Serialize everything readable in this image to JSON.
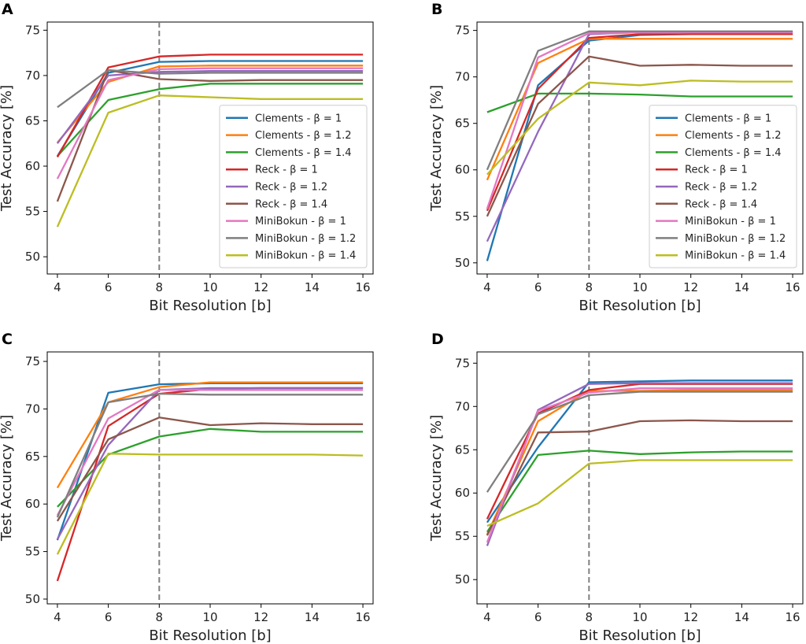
{
  "palette": {
    "blue": "#1f77b4",
    "orange": "#ff7f0e",
    "green": "#2ca02c",
    "red": "#d62728",
    "purple": "#9467bd",
    "brown": "#8c564b",
    "pink": "#e377c2",
    "gray": "#7f7f7f",
    "olive": "#bcbd22"
  },
  "chart_data": [
    {
      "panel": "A",
      "type": "line",
      "title": "",
      "xlabel": "Bit Resolution [b]",
      "ylabel": "Test Accuracy [%]",
      "x": [
        4,
        6,
        8,
        10,
        12,
        14,
        16
      ],
      "xticks": [
        "4",
        "6",
        "8",
        "10",
        "12",
        "14",
        "16"
      ],
      "yticks": [
        "50",
        "55",
        "60",
        "65",
        "70",
        "75"
      ],
      "xlim": [
        3.6,
        16.4
      ],
      "ylim": [
        48.1,
        75.9
      ],
      "vline_x": 8,
      "legend": "lower-right",
      "series": [
        {
          "name": "Clements - β = 1",
          "color": "blue",
          "values": [
            61.1,
            70.3,
            71.5,
            71.6,
            71.6,
            71.6,
            71.6
          ]
        },
        {
          "name": "Clements - β = 1.2",
          "color": "orange",
          "values": [
            62.6,
            69.3,
            71.0,
            71.1,
            71.1,
            71.1,
            71.1
          ]
        },
        {
          "name": "Clements - β = 1.4",
          "color": "green",
          "values": [
            61.1,
            67.3,
            68.5,
            69.1,
            69.1,
            69.1,
            69.1
          ]
        },
        {
          "name": "Reck - β = 1",
          "color": "red",
          "values": [
            61.0,
            70.9,
            72.1,
            72.3,
            72.3,
            72.3,
            72.3
          ]
        },
        {
          "name": "Reck - β = 1.2",
          "color": "purple",
          "values": [
            62.5,
            70.0,
            70.4,
            70.5,
            70.5,
            70.5,
            70.5
          ]
        },
        {
          "name": "Reck - β = 1.4",
          "color": "brown",
          "values": [
            56.1,
            70.6,
            69.6,
            69.4,
            69.5,
            69.5,
            69.5
          ]
        },
        {
          "name": "MiniBokun - β = 1",
          "color": "pink",
          "values": [
            58.6,
            69.5,
            70.7,
            70.8,
            70.8,
            70.8,
            70.8
          ]
        },
        {
          "name": "MiniBokun - β = 1.2",
          "color": "gray",
          "values": [
            66.5,
            70.6,
            70.2,
            70.3,
            70.3,
            70.3,
            70.3
          ]
        },
        {
          "name": "MiniBokun - β = 1.4",
          "color": "olive",
          "values": [
            53.3,
            65.9,
            67.8,
            67.6,
            67.4,
            67.4,
            67.4
          ]
        }
      ]
    },
    {
      "panel": "B",
      "type": "line",
      "title": "",
      "xlabel": "Bit Resolution [b]",
      "ylabel": "Test Accuracy [%]",
      "x": [
        4,
        6,
        8,
        10,
        12,
        14,
        16
      ],
      "xticks": [
        "4",
        "6",
        "8",
        "10",
        "12",
        "14",
        "16"
      ],
      "yticks": [
        "50",
        "55",
        "60",
        "65",
        "70",
        "75"
      ],
      "xlim": [
        3.6,
        16.4
      ],
      "ylim": [
        48.8,
        75.9
      ],
      "vline_x": 8,
      "legend": "lower-right",
      "series": [
        {
          "name": "Clements - β = 1",
          "color": "blue",
          "values": [
            50.2,
            69.1,
            73.9,
            74.5,
            74.6,
            74.6,
            74.6
          ]
        },
        {
          "name": "Clements - β = 1.2",
          "color": "orange",
          "values": [
            58.9,
            71.5,
            74.1,
            74.1,
            74.1,
            74.1,
            74.1
          ]
        },
        {
          "name": "Clements - β = 1.4",
          "color": "green",
          "values": [
            66.2,
            68.2,
            68.2,
            68.1,
            67.9,
            67.9,
            67.9
          ]
        },
        {
          "name": "Reck - β = 1",
          "color": "red",
          "values": [
            55.6,
            68.7,
            74.2,
            74.6,
            74.6,
            74.6,
            74.6
          ]
        },
        {
          "name": "Reck - β = 1.2",
          "color": "purple",
          "values": [
            52.3,
            64.1,
            74.6,
            74.8,
            74.8,
            74.8,
            74.8
          ]
        },
        {
          "name": "Reck - β = 1.4",
          "color": "brown",
          "values": [
            55.0,
            67.1,
            72.2,
            71.2,
            71.3,
            71.2,
            71.2
          ]
        },
        {
          "name": "MiniBokun - β = 1",
          "color": "pink",
          "values": [
            55.8,
            72.1,
            74.7,
            74.8,
            74.8,
            74.8,
            74.8
          ]
        },
        {
          "name": "MiniBokun - β = 1.2",
          "color": "gray",
          "values": [
            60.0,
            72.8,
            74.9,
            74.9,
            74.9,
            74.9,
            74.9
          ]
        },
        {
          "name": "MiniBokun - β = 1.4",
          "color": "olive",
          "values": [
            59.5,
            65.5,
            69.4,
            69.1,
            69.6,
            69.5,
            69.5
          ]
        }
      ]
    },
    {
      "panel": "C",
      "type": "line",
      "title": "",
      "xlabel": "Bit Resolution [b]",
      "ylabel": "Test Accuracy [%]",
      "x": [
        4,
        6,
        8,
        10,
        12,
        14,
        16
      ],
      "xticks": [
        "4",
        "6",
        "8",
        "10",
        "12",
        "14",
        "16"
      ],
      "yticks": [
        "50",
        "55",
        "60",
        "65",
        "70",
        "75"
      ],
      "xlim": [
        3.6,
        16.4
      ],
      "ylim": [
        49.5,
        76.0
      ],
      "vline_x": 8,
      "legend": "none",
      "series": [
        {
          "name": "Clements - β = 1",
          "color": "blue",
          "values": [
            56.2,
            71.7,
            72.6,
            72.7,
            72.7,
            72.7,
            72.7
          ]
        },
        {
          "name": "Clements - β = 1.2",
          "color": "orange",
          "values": [
            61.7,
            70.7,
            72.3,
            72.8,
            72.8,
            72.8,
            72.8
          ]
        },
        {
          "name": "Clements - β = 1.4",
          "color": "green",
          "values": [
            59.7,
            65.2,
            67.1,
            67.9,
            67.6,
            67.6,
            67.6
          ]
        },
        {
          "name": "Reck - β = 1",
          "color": "red",
          "values": [
            51.9,
            68.2,
            71.6,
            72.1,
            72.2,
            72.2,
            72.2
          ]
        },
        {
          "name": "Reck - β = 1.2",
          "color": "purple",
          "values": [
            56.3,
            66.2,
            72.0,
            72.2,
            72.2,
            72.2,
            72.2
          ]
        },
        {
          "name": "Reck - β = 1.4",
          "color": "brown",
          "values": [
            58.2,
            66.8,
            69.1,
            68.3,
            68.5,
            68.4,
            68.4
          ]
        },
        {
          "name": "MiniBokun - β = 1",
          "color": "pink",
          "values": [
            58.8,
            69.0,
            72.0,
            72.0,
            72.0,
            72.0,
            72.0
          ]
        },
        {
          "name": "MiniBokun - β = 1.2",
          "color": "gray",
          "values": [
            58.6,
            70.7,
            71.6,
            71.5,
            71.5,
            71.5,
            71.5
          ]
        },
        {
          "name": "MiniBokun - β = 1.4",
          "color": "olive",
          "values": [
            54.7,
            65.3,
            65.2,
            65.2,
            65.2,
            65.2,
            65.1
          ]
        }
      ]
    },
    {
      "panel": "D",
      "type": "line",
      "title": "",
      "xlabel": "Bit Resolution [b]",
      "ylabel": "Test Accuracy [%]",
      "x": [
        4,
        6,
        8,
        10,
        12,
        14,
        16
      ],
      "xticks": [
        "4",
        "6",
        "8",
        "10",
        "12",
        "14",
        "16"
      ],
      "yticks": [
        "50",
        "55",
        "60",
        "65",
        "70",
        "75"
      ],
      "xlim": [
        3.6,
        16.4
      ],
      "ylim": [
        47.2,
        76.3
      ],
      "vline_x": 8,
      "legend": "none",
      "series": [
        {
          "name": "Clements - β = 1",
          "color": "blue",
          "values": [
            56.6,
            65.3,
            72.8,
            72.9,
            73.0,
            73.0,
            73.0
          ]
        },
        {
          "name": "Clements - β = 1.2",
          "color": "orange",
          "values": [
            55.2,
            68.3,
            71.8,
            71.8,
            71.9,
            71.9,
            71.9
          ]
        },
        {
          "name": "Clements - β = 1.4",
          "color": "green",
          "values": [
            55.5,
            64.4,
            64.9,
            64.5,
            64.7,
            64.8,
            64.8
          ]
        },
        {
          "name": "Reck - β = 1",
          "color": "red",
          "values": [
            57.0,
            69.2,
            71.9,
            72.6,
            72.6,
            72.6,
            72.6
          ]
        },
        {
          "name": "Reck - β = 1.2",
          "color": "purple",
          "values": [
            53.9,
            69.6,
            72.6,
            72.7,
            72.7,
            72.7,
            72.7
          ]
        },
        {
          "name": "Reck - β = 1.4",
          "color": "brown",
          "values": [
            55.1,
            67.0,
            67.1,
            68.3,
            68.4,
            68.3,
            68.3
          ]
        },
        {
          "name": "MiniBokun - β = 1",
          "color": "pink",
          "values": [
            54.3,
            69.5,
            71.6,
            72.1,
            72.1,
            72.1,
            72.1
          ]
        },
        {
          "name": "MiniBokun - β = 1.2",
          "color": "gray",
          "values": [
            60.1,
            69.1,
            71.3,
            71.7,
            71.7,
            71.7,
            71.7
          ]
        },
        {
          "name": "MiniBokun - β = 1.4",
          "color": "olive",
          "values": [
            56.2,
            58.8,
            63.4,
            63.8,
            63.8,
            63.8,
            63.8
          ]
        }
      ]
    }
  ]
}
